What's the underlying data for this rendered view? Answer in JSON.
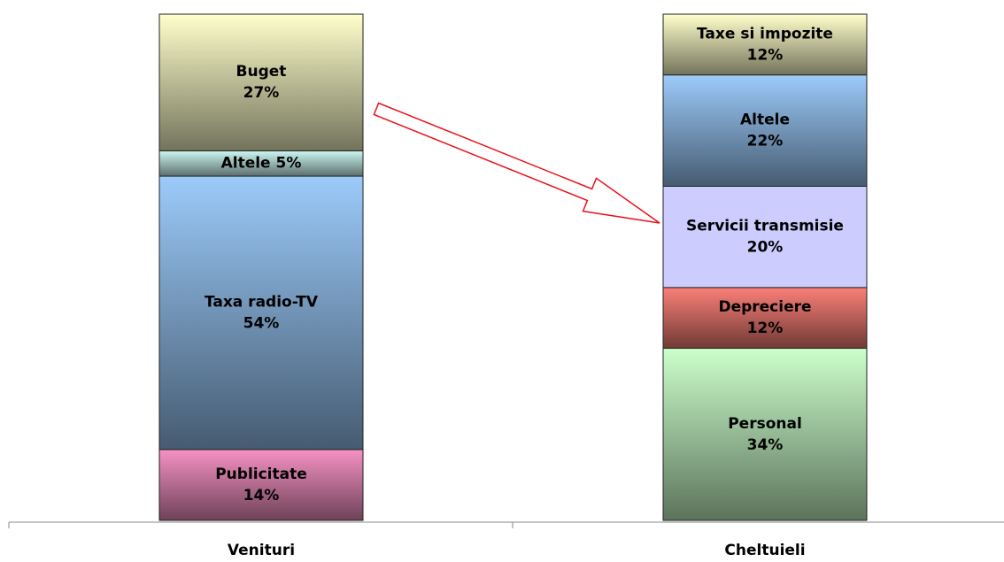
{
  "chart_data": {
    "type": "stacked-bar",
    "categories": [
      "Venituri",
      "Cheltuieli"
    ],
    "series": [
      {
        "name": "Publicitate",
        "color": "#f592c4",
        "gradient": true,
        "values": [
          14,
          null
        ],
        "value_labels": [
          "14%",
          null
        ]
      },
      {
        "name": "Taxa radio-TV",
        "color": "#9ccbfa",
        "gradient": true,
        "values": [
          54,
          null
        ],
        "value_labels": [
          "54%",
          null
        ]
      },
      {
        "name": "Altele",
        "color": "#ccf7f2",
        "gradient": true,
        "values": [
          5,
          null
        ],
        "value_labels": [
          "5%",
          null
        ]
      },
      {
        "name": "Buget",
        "color": "#ffffcc",
        "gradient": true,
        "values": [
          27,
          null
        ],
        "value_labels": [
          "27%",
          null
        ]
      },
      {
        "name": "Personal",
        "color": "#ccffcc",
        "gradient": true,
        "values": [
          null,
          34
        ],
        "value_labels": [
          null,
          "34%"
        ]
      },
      {
        "name": "Depreciere",
        "color": "#fa8078",
        "gradient": true,
        "values": [
          null,
          12
        ],
        "value_labels": [
          null,
          "12%"
        ]
      },
      {
        "name": "Servicii transmisie",
        "color": "#ccccff",
        "gradient": false,
        "values": [
          null,
          20
        ],
        "value_labels": [
          null,
          "20%"
        ]
      },
      {
        "name": "Altele",
        "color": "#9ccbfa",
        "gradient": true,
        "values": [
          null,
          22
        ],
        "value_labels": [
          null,
          "22%"
        ]
      },
      {
        "name": "Taxe si impozite",
        "color": "#ffffcc",
        "gradient": true,
        "values": [
          null,
          12
        ],
        "value_labels": [
          null,
          "12%"
        ]
      }
    ]
  }
}
